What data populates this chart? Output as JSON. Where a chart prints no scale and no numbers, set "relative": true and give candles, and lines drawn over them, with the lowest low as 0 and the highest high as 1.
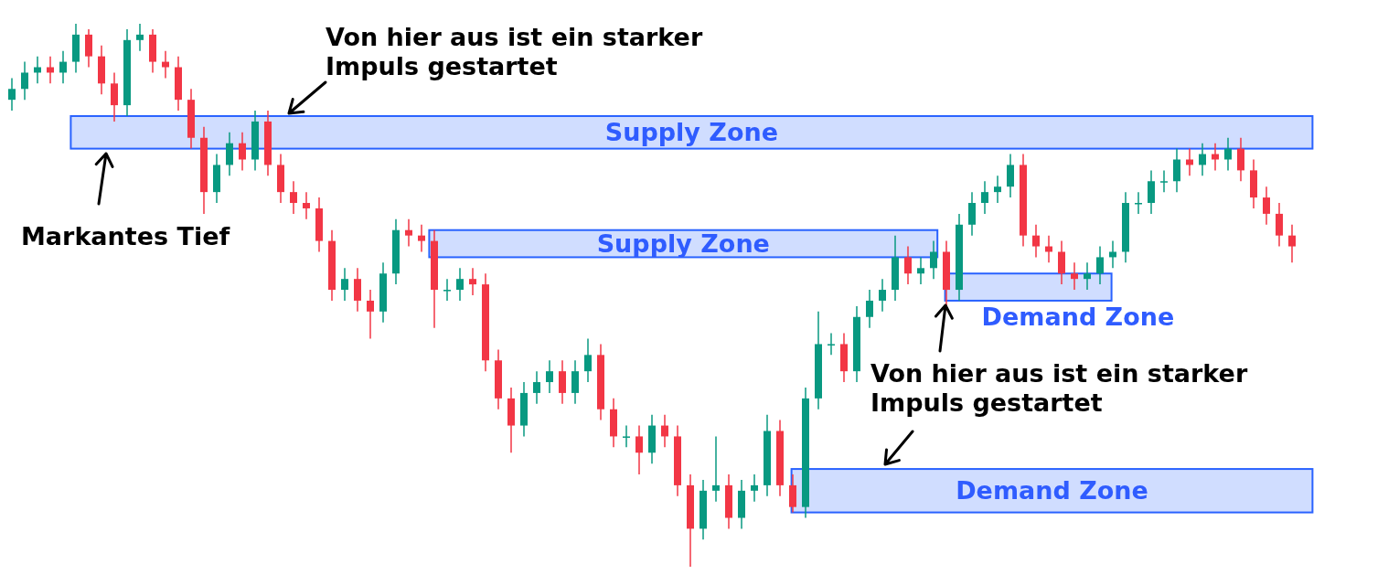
{
  "chart_data": {
    "type": "candlestick",
    "relative": true,
    "categories": [
      null,
      null,
      null,
      null,
      null,
      null,
      null,
      null,
      null,
      null,
      null,
      null,
      null,
      null,
      null,
      null,
      null,
      null,
      null,
      null,
      null,
      null,
      null,
      null,
      null,
      null,
      null,
      null,
      null,
      null,
      null,
      null,
      null,
      null,
      null,
      null,
      null,
      null,
      null,
      null,
      null,
      null,
      null,
      null,
      null,
      null,
      null,
      null,
      null,
      null,
      null,
      null,
      null,
      null,
      null,
      null,
      null,
      null,
      null,
      null,
      null,
      null,
      null,
      null,
      null,
      null,
      null,
      null,
      null,
      null,
      null,
      null,
      null,
      null,
      null,
      null,
      null,
      null,
      null,
      null,
      null,
      null,
      null,
      null,
      null,
      null,
      null,
      null,
      null,
      null,
      null,
      null,
      null,
      null,
      null,
      null,
      null,
      null,
      null,
      null,
      null
    ],
    "ohlc": [
      [
        0.86,
        0.9,
        0.84,
        0.88
      ],
      [
        0.88,
        0.93,
        0.86,
        0.91
      ],
      [
        0.91,
        0.94,
        0.89,
        0.92
      ],
      [
        0.92,
        0.94,
        0.89,
        0.91
      ],
      [
        0.91,
        0.95,
        0.89,
        0.93
      ],
      [
        0.93,
        1.0,
        0.91,
        0.98
      ],
      [
        0.98,
        0.99,
        0.92,
        0.94
      ],
      [
        0.94,
        0.96,
        0.87,
        0.89
      ],
      [
        0.89,
        0.91,
        0.82,
        0.85
      ],
      [
        0.85,
        0.99,
        0.83,
        0.97
      ],
      [
        0.97,
        1.0,
        0.95,
        0.98
      ],
      [
        0.98,
        0.99,
        0.91,
        0.93
      ],
      [
        0.93,
        0.95,
        0.9,
        0.92
      ],
      [
        0.92,
        0.94,
        0.84,
        0.86
      ],
      [
        0.86,
        0.88,
        0.77,
        0.79
      ],
      [
        0.79,
        0.81,
        0.65,
        0.69
      ],
      [
        0.69,
        0.76,
        0.67,
        0.74
      ],
      [
        0.74,
        0.8,
        0.72,
        0.78
      ],
      [
        0.78,
        0.8,
        0.73,
        0.75
      ],
      [
        0.75,
        0.84,
        0.73,
        0.82
      ],
      [
        0.82,
        0.84,
        0.72,
        0.74
      ],
      [
        0.74,
        0.76,
        0.67,
        0.69
      ],
      [
        0.69,
        0.71,
        0.65,
        0.67
      ],
      [
        0.67,
        0.69,
        0.64,
        0.66
      ],
      [
        0.66,
        0.68,
        0.58,
        0.6
      ],
      [
        0.6,
        0.62,
        0.49,
        0.51
      ],
      [
        0.51,
        0.55,
        0.49,
        0.53
      ],
      [
        0.53,
        0.55,
        0.47,
        0.49
      ],
      [
        0.49,
        0.51,
        0.42,
        0.47
      ],
      [
        0.47,
        0.56,
        0.45,
        0.54
      ],
      [
        0.54,
        0.64,
        0.52,
        0.62
      ],
      [
        0.62,
        0.64,
        0.59,
        0.61
      ],
      [
        0.61,
        0.63,
        0.58,
        0.6
      ],
      [
        0.6,
        0.62,
        0.44,
        0.51
      ],
      [
        0.51,
        0.53,
        0.49,
        0.51
      ],
      [
        0.51,
        0.55,
        0.49,
        0.53
      ],
      [
        0.53,
        0.55,
        0.5,
        0.52
      ],
      [
        0.52,
        0.54,
        0.36,
        0.38
      ],
      [
        0.38,
        0.4,
        0.29,
        0.31
      ],
      [
        0.31,
        0.33,
        0.21,
        0.26
      ],
      [
        0.26,
        0.34,
        0.24,
        0.32
      ],
      [
        0.32,
        0.36,
        0.3,
        0.34
      ],
      [
        0.34,
        0.38,
        0.32,
        0.36
      ],
      [
        0.36,
        0.38,
        0.3,
        0.32
      ],
      [
        0.32,
        0.38,
        0.3,
        0.36
      ],
      [
        0.36,
        0.42,
        0.34,
        0.39
      ],
      [
        0.39,
        0.41,
        0.27,
        0.29
      ],
      [
        0.29,
        0.31,
        0.22,
        0.24
      ],
      [
        0.24,
        0.26,
        0.22,
        0.24
      ],
      [
        0.24,
        0.26,
        0.17,
        0.21
      ],
      [
        0.21,
        0.28,
        0.19,
        0.26
      ],
      [
        0.26,
        0.28,
        0.22,
        0.24
      ],
      [
        0.24,
        0.26,
        0.13,
        0.15
      ],
      [
        0.15,
        0.17,
        0,
        0.07
      ],
      [
        0.07,
        0.16,
        0.05,
        0.14
      ],
      [
        0.14,
        0.24,
        0.12,
        0.15
      ],
      [
        0.15,
        0.17,
        0.07,
        0.09
      ],
      [
        0.09,
        0.16,
        0.07,
        0.14
      ],
      [
        0.14,
        0.17,
        0.12,
        0.15
      ],
      [
        0.15,
        0.28,
        0.13,
        0.25
      ],
      [
        0.25,
        0.27,
        0.13,
        0.15
      ],
      [
        0.15,
        0.17,
        0.1,
        0.11
      ],
      [
        0.11,
        0.33,
        0.09,
        0.31
      ],
      [
        0.31,
        0.47,
        0.29,
        0.41
      ],
      [
        0.41,
        0.43,
        0.39,
        0.41
      ],
      [
        0.41,
        0.43,
        0.34,
        0.36
      ],
      [
        0.36,
        0.48,
        0.34,
        0.46
      ],
      [
        0.46,
        0.51,
        0.44,
        0.49
      ],
      [
        0.49,
        0.53,
        0.47,
        0.51
      ],
      [
        0.51,
        0.61,
        0.49,
        0.57
      ],
      [
        0.57,
        0.59,
        0.52,
        0.54
      ],
      [
        0.54,
        0.57,
        0.52,
        0.55
      ],
      [
        0.55,
        0.6,
        0.53,
        0.58
      ],
      [
        0.58,
        0.6,
        0.48,
        0.51
      ],
      [
        0.51,
        0.65,
        0.49,
        0.63
      ],
      [
        0.63,
        0.69,
        0.61,
        0.67
      ],
      [
        0.67,
        0.71,
        0.65,
        0.69
      ],
      [
        0.69,
        0.72,
        0.67,
        0.7
      ],
      [
        0.7,
        0.76,
        0.68,
        0.74
      ],
      [
        0.74,
        0.76,
        0.59,
        0.61
      ],
      [
        0.61,
        0.63,
        0.57,
        0.59
      ],
      [
        0.59,
        0.61,
        0.56,
        0.58
      ],
      [
        0.58,
        0.6,
        0.52,
        0.54
      ],
      [
        0.54,
        0.56,
        0.51,
        0.53
      ],
      [
        0.53,
        0.56,
        0.51,
        0.54
      ],
      [
        0.54,
        0.59,
        0.52,
        0.57
      ],
      [
        0.57,
        0.6,
        0.55,
        0.58
      ],
      [
        0.58,
        0.69,
        0.56,
        0.67
      ],
      [
        0.67,
        0.69,
        0.65,
        0.67
      ],
      [
        0.67,
        0.73,
        0.65,
        0.71
      ],
      [
        0.71,
        0.73,
        0.69,
        0.71
      ],
      [
        0.71,
        0.77,
        0.69,
        0.75
      ],
      [
        0.75,
        0.77,
        0.72,
        0.74
      ],
      [
        0.74,
        0.78,
        0.72,
        0.76
      ],
      [
        0.76,
        0.78,
        0.73,
        0.75
      ],
      [
        0.75,
        0.79,
        0.73,
        0.77
      ],
      [
        0.77,
        0.79,
        0.71,
        0.73
      ],
      [
        0.73,
        0.75,
        0.66,
        0.68
      ],
      [
        0.68,
        0.7,
        0.63,
        0.65
      ],
      [
        0.65,
        0.67,
        0.59,
        0.61
      ],
      [
        0.61,
        0.63,
        0.56,
        0.59
      ]
    ],
    "bands": [
      {
        "axis": "y",
        "from": 0.77,
        "to": 0.83,
        "label": "Supply Zone",
        "color": "#2962ff"
      },
      {
        "axis": "y",
        "from": 0.57,
        "to": 0.62,
        "label": "Supply Zone",
        "color": "#2962ff"
      },
      {
        "axis": "y",
        "from": 0.49,
        "to": 0.54,
        "label": "Demand Zone",
        "color": "#2962ff"
      },
      {
        "axis": "y",
        "from": 0.1,
        "to": 0.18,
        "label": "Demand Zone",
        "color": "#2962ff"
      }
    ],
    "annotations": [
      "Von hier aus ist ein starker Impuls gestartet",
      "Markantes Tief",
      "Von hier aus ist ein starker Impuls gestartet"
    ]
  }
}
